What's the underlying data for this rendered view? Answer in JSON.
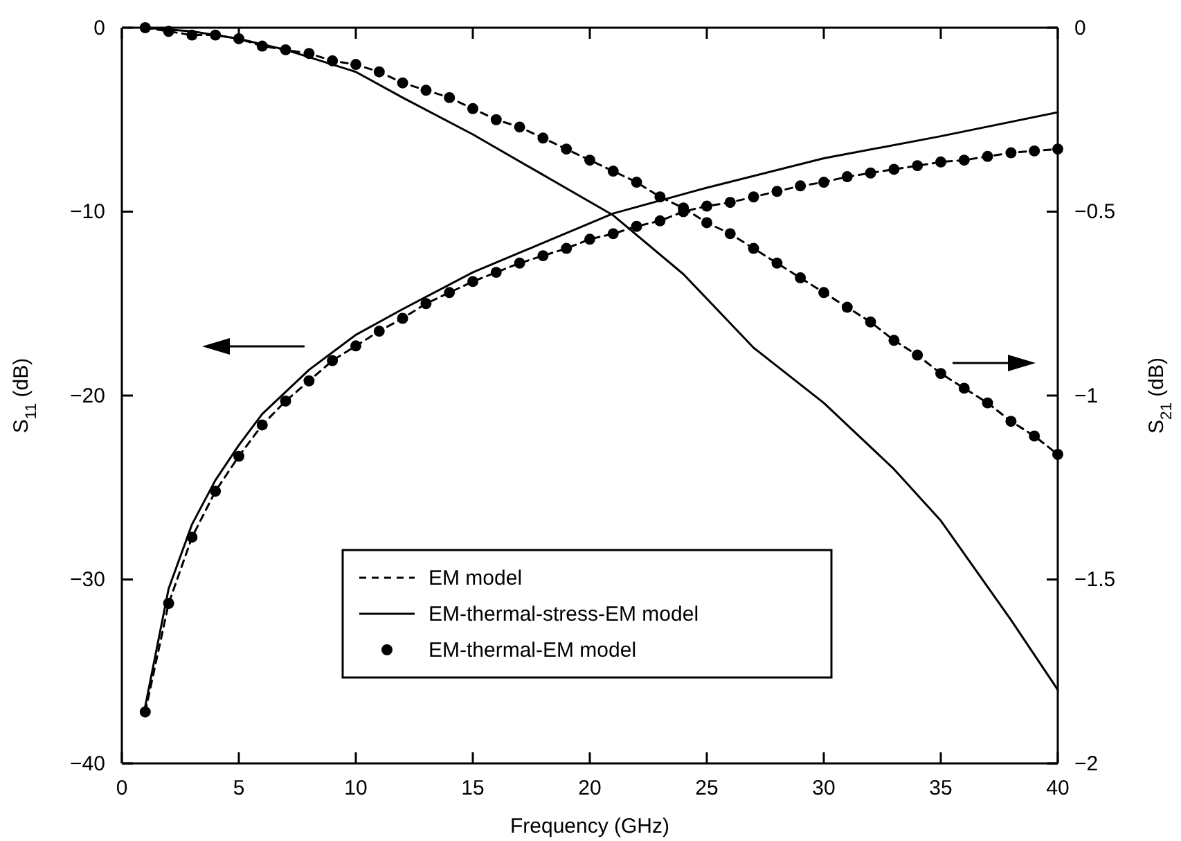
{
  "chart_data": {
    "type": "line",
    "xlabel": "Frequency (GHz)",
    "ylabel": "S$_{11}$ (dB)",
    "y2label": "S$_{21}$ (dB)",
    "xlim": [
      0,
      40
    ],
    "xticks": [
      0,
      5,
      10,
      15,
      20,
      25,
      30,
      35,
      40
    ],
    "ylim": [
      -40,
      0
    ],
    "yticks": [
      -40,
      -30,
      -20,
      -10,
      0
    ],
    "y2lim": [
      -2,
      0
    ],
    "y2ticks": [
      -2,
      -1.5,
      -1,
      -0.5,
      0
    ],
    "grid": false,
    "legend": "bottom",
    "series": [
      {
        "name": "EM model",
        "color": "#000000",
        "line_style": "dashed",
        "marker": "none",
        "x": [
          1,
          2,
          3,
          4,
          5,
          6,
          7,
          8,
          9,
          10,
          11,
          12,
          13,
          14,
          15,
          16,
          17,
          18,
          19,
          20,
          21,
          22,
          23,
          24,
          25,
          26,
          27,
          28,
          29,
          30,
          31,
          32,
          33,
          34,
          35,
          36,
          37,
          38,
          39,
          40
        ],
        "values": [
          -37.2,
          -31.3,
          -27.7,
          -25.2,
          -23.3,
          -21.6,
          -20.3,
          -19.2,
          -18.1,
          -17.3,
          -16.5,
          -15.8,
          -15.0,
          -14.4,
          -13.8,
          -13.3,
          -12.8,
          -12.4,
          -12.0,
          -11.5,
          -11.2,
          -10.8,
          -10.5,
          -10.0,
          -9.7,
          -9.5,
          -9.2,
          -8.9,
          -8.6,
          -8.4,
          -8.1,
          -7.9,
          -7.7,
          -7.5,
          -7.3,
          -7.2,
          -7.0,
          -6.8,
          -6.7,
          -6.6
        ]
      },
      {
        "name": "EM-thermal-stress-EM model",
        "color": "#000000",
        "line_style": "solid",
        "marker": "none",
        "x": [
          1,
          2,
          3,
          4,
          5,
          6,
          8,
          10,
          12,
          15,
          18,
          21,
          25,
          30,
          35,
          40
        ],
        "values": [
          -36.9,
          -30.5,
          -27.0,
          -24.6,
          -22.7,
          -21.0,
          -18.6,
          -16.7,
          -15.3,
          -13.3,
          -11.7,
          -10.1,
          -8.7,
          -7.1,
          -5.9,
          -4.6
        ]
      },
      {
        "name": "EM-thermal-EM model",
        "type": "scatter",
        "color": "#000000",
        "marker": "circle",
        "x": [
          1,
          2,
          3,
          4,
          5,
          6,
          7,
          8,
          9,
          10,
          11,
          12,
          13,
          14,
          15,
          16,
          17,
          18,
          19,
          20,
          21,
          22,
          23,
          24,
          25,
          26,
          27,
          28,
          29,
          30,
          31,
          32,
          33,
          34,
          35,
          36,
          37,
          38,
          39,
          40
        ],
        "values": [
          -37.2,
          -31.3,
          -27.7,
          -25.2,
          -23.3,
          -21.6,
          -20.3,
          -19.2,
          -18.1,
          -17.3,
          -16.5,
          -15.8,
          -15.0,
          -14.4,
          -13.8,
          -13.3,
          -12.8,
          -12.4,
          -12.0,
          -11.5,
          -11.2,
          -10.8,
          -10.5,
          -10.0,
          -9.7,
          -9.5,
          -9.2,
          -8.9,
          -8.6,
          -8.4,
          -8.1,
          -7.9,
          -7.7,
          -7.5,
          -7.3,
          -7.2,
          -7.0,
          -6.8,
          -6.7,
          -6.6
        ]
      },
      {
        "color": "#000000",
        "axis": "y2",
        "line_style": "dashed",
        "marker": "none",
        "x": [
          1,
          2,
          3,
          4,
          5,
          6,
          7,
          8,
          9,
          10,
          11,
          12,
          13,
          14,
          15,
          16,
          17,
          18,
          19,
          20,
          21,
          22,
          23,
          24,
          25,
          26,
          27,
          28,
          29,
          30,
          31,
          32,
          33,
          34,
          35,
          36,
          37,
          38,
          39,
          40
        ],
        "values": [
          0,
          -0.01,
          -0.02,
          -0.02,
          -0.03,
          -0.05,
          -0.06,
          -0.07,
          -0.09,
          -0.1,
          -0.12,
          -0.15,
          -0.17,
          -0.19,
          -0.22,
          -0.25,
          -0.27,
          -0.3,
          -0.33,
          -0.36,
          -0.39,
          -0.42,
          -0.46,
          -0.49,
          -0.53,
          -0.56,
          -0.6,
          -0.64,
          -0.68,
          -0.72,
          -0.76,
          -0.8,
          -0.85,
          -0.89,
          -0.94,
          -0.98,
          -1.02,
          -1.07,
          -1.11,
          -1.16
        ]
      },
      {
        "color": "#000000",
        "axis": "y2",
        "line_style": "solid",
        "marker": "none",
        "x": [
          1,
          3,
          5,
          7,
          10,
          12,
          15,
          18,
          21,
          24,
          27,
          30,
          33,
          35,
          38,
          40
        ],
        "values": [
          0,
          -0.01,
          -0.03,
          -0.06,
          -0.12,
          -0.19,
          -0.29,
          -0.4,
          -0.51,
          -0.67,
          -0.87,
          -1.02,
          -1.2,
          -1.34,
          -1.61,
          -1.8
        ]
      },
      {
        "type": "scatter",
        "color": "#000000",
        "axis": "y2",
        "marker": "circle",
        "x": [
          1,
          2,
          3,
          4,
          5,
          6,
          7,
          8,
          9,
          10,
          11,
          12,
          13,
          14,
          15,
          16,
          17,
          18,
          19,
          20,
          21,
          22,
          23,
          24,
          25,
          26,
          27,
          28,
          29,
          30,
          31,
          32,
          33,
          34,
          35,
          36,
          37,
          38,
          39,
          40
        ],
        "values": [
          0,
          -0.01,
          -0.02,
          -0.02,
          -0.03,
          -0.05,
          -0.06,
          -0.07,
          -0.09,
          -0.1,
          -0.12,
          -0.15,
          -0.17,
          -0.19,
          -0.22,
          -0.25,
          -0.27,
          -0.3,
          -0.33,
          -0.36,
          -0.39,
          -0.42,
          -0.46,
          -0.49,
          -0.53,
          -0.56,
          -0.6,
          -0.64,
          -0.68,
          -0.72,
          -0.76,
          -0.8,
          -0.85,
          -0.89,
          -0.94,
          -0.98,
          -1.02,
          -1.07,
          -1.11,
          -1.16
        ]
      }
    ]
  }
}
